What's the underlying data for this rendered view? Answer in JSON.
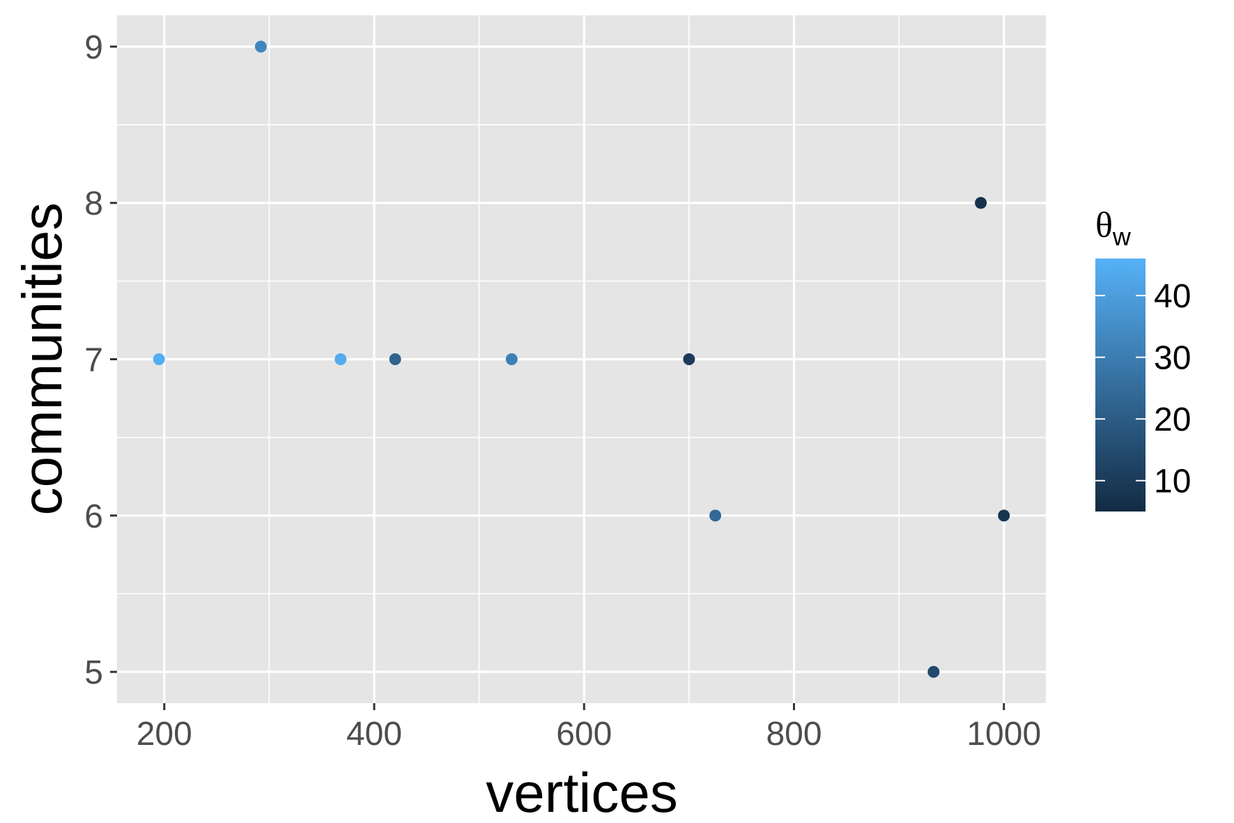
{
  "chart_data": {
    "type": "scatter",
    "xlabel": "vertices",
    "ylabel": "communities",
    "xlim": [
      155,
      1040
    ],
    "ylim": [
      4.8,
      9.2
    ],
    "x_ticks": [
      200,
      400,
      600,
      800,
      1000
    ],
    "y_ticks": [
      5,
      6,
      7,
      8,
      9
    ],
    "grid": true,
    "legend": {
      "title": "θ",
      "title_subscript": "w",
      "placement": "right",
      "type": "colorbar",
      "range": [
        5,
        46
      ],
      "ticks": [
        10,
        20,
        30,
        40
      ],
      "color_low": "#132b43",
      "color_high": "#56b1f7"
    },
    "points": [
      {
        "x": 195,
        "y": 7,
        "theta_w": 45
      },
      {
        "x": 292,
        "y": 9,
        "theta_w": 33
      },
      {
        "x": 368,
        "y": 7,
        "theta_w": 44
      },
      {
        "x": 420,
        "y": 7,
        "theta_w": 22
      },
      {
        "x": 531,
        "y": 7,
        "theta_w": 31
      },
      {
        "x": 700,
        "y": 7,
        "theta_w": 10
      },
      {
        "x": 725,
        "y": 6,
        "theta_w": 24
      },
      {
        "x": 933,
        "y": 5,
        "theta_w": 14
      },
      {
        "x": 978,
        "y": 8,
        "theta_w": 7
      },
      {
        "x": 1000,
        "y": 6,
        "theta_w": 8
      }
    ]
  }
}
